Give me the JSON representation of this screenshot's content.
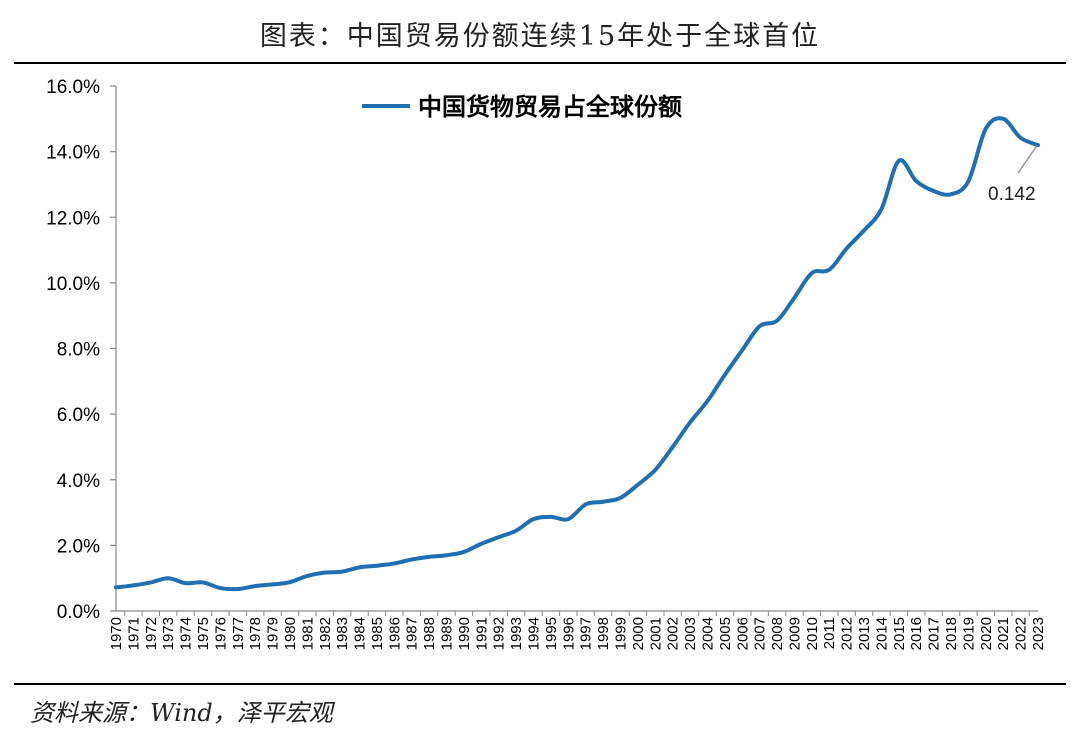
{
  "header": {
    "title": "图表：中国贸易份额连续15年处于全球首位"
  },
  "footer": {
    "source": "资料来源：Wind，泽平宏观"
  },
  "chart_data": {
    "type": "line",
    "title": "图表：中国贸易份额连续15年处于全球首位",
    "xlabel": "",
    "ylabel": "",
    "ylim": [
      0,
      0.16
    ],
    "y_ticks": [
      "0.0%",
      "2.0%",
      "4.0%",
      "6.0%",
      "8.0%",
      "10.0%",
      "12.0%",
      "14.0%",
      "16.0%"
    ],
    "y_tick_values": [
      0,
      0.02,
      0.04,
      0.06,
      0.08,
      0.1,
      0.12,
      0.14,
      0.16
    ],
    "grid": false,
    "legend_position": "top",
    "x": [
      "1970",
      "1971",
      "1972",
      "1973",
      "1974",
      "1975",
      "1976",
      "1977",
      "1978",
      "1979",
      "1980",
      "1981",
      "1982",
      "1983",
      "1984",
      "1985",
      "1986",
      "1987",
      "1988",
      "1989",
      "1990",
      "1991",
      "1992",
      "1993",
      "1994",
      "1995",
      "1996",
      "1997",
      "1998",
      "1999",
      "2000",
      "2001",
      "2002",
      "2003",
      "2004",
      "2005",
      "2006",
      "2007",
      "2008",
      "2009",
      "2010",
      "2011",
      "2012",
      "2013",
      "2014",
      "2015",
      "2016",
      "2017",
      "2018",
      "2019",
      "2020",
      "2021",
      "2022",
      "2023"
    ],
    "series": [
      {
        "name": "中国货物贸易占全球份额",
        "color": "#1f6fb2",
        "values": [
          0.0072,
          0.0078,
          0.0087,
          0.01,
          0.0085,
          0.0087,
          0.007,
          0.0067,
          0.0076,
          0.0081,
          0.0088,
          0.0107,
          0.0117,
          0.012,
          0.0133,
          0.0138,
          0.0145,
          0.0157,
          0.0165,
          0.017,
          0.018,
          0.0205,
          0.0225,
          0.0245,
          0.028,
          0.0287,
          0.028,
          0.0325,
          0.0333,
          0.0345,
          0.0385,
          0.043,
          0.05,
          0.0575,
          0.064,
          0.072,
          0.0795,
          0.0868,
          0.0885,
          0.0955,
          0.103,
          0.104,
          0.1105,
          0.116,
          0.1225,
          0.1372,
          0.131,
          0.128,
          0.127,
          0.131,
          0.147,
          0.15,
          0.1442,
          0.142
        ]
      }
    ],
    "annotations": [
      {
        "x": "2023",
        "value": 0.142,
        "text": "0.142"
      }
    ]
  }
}
